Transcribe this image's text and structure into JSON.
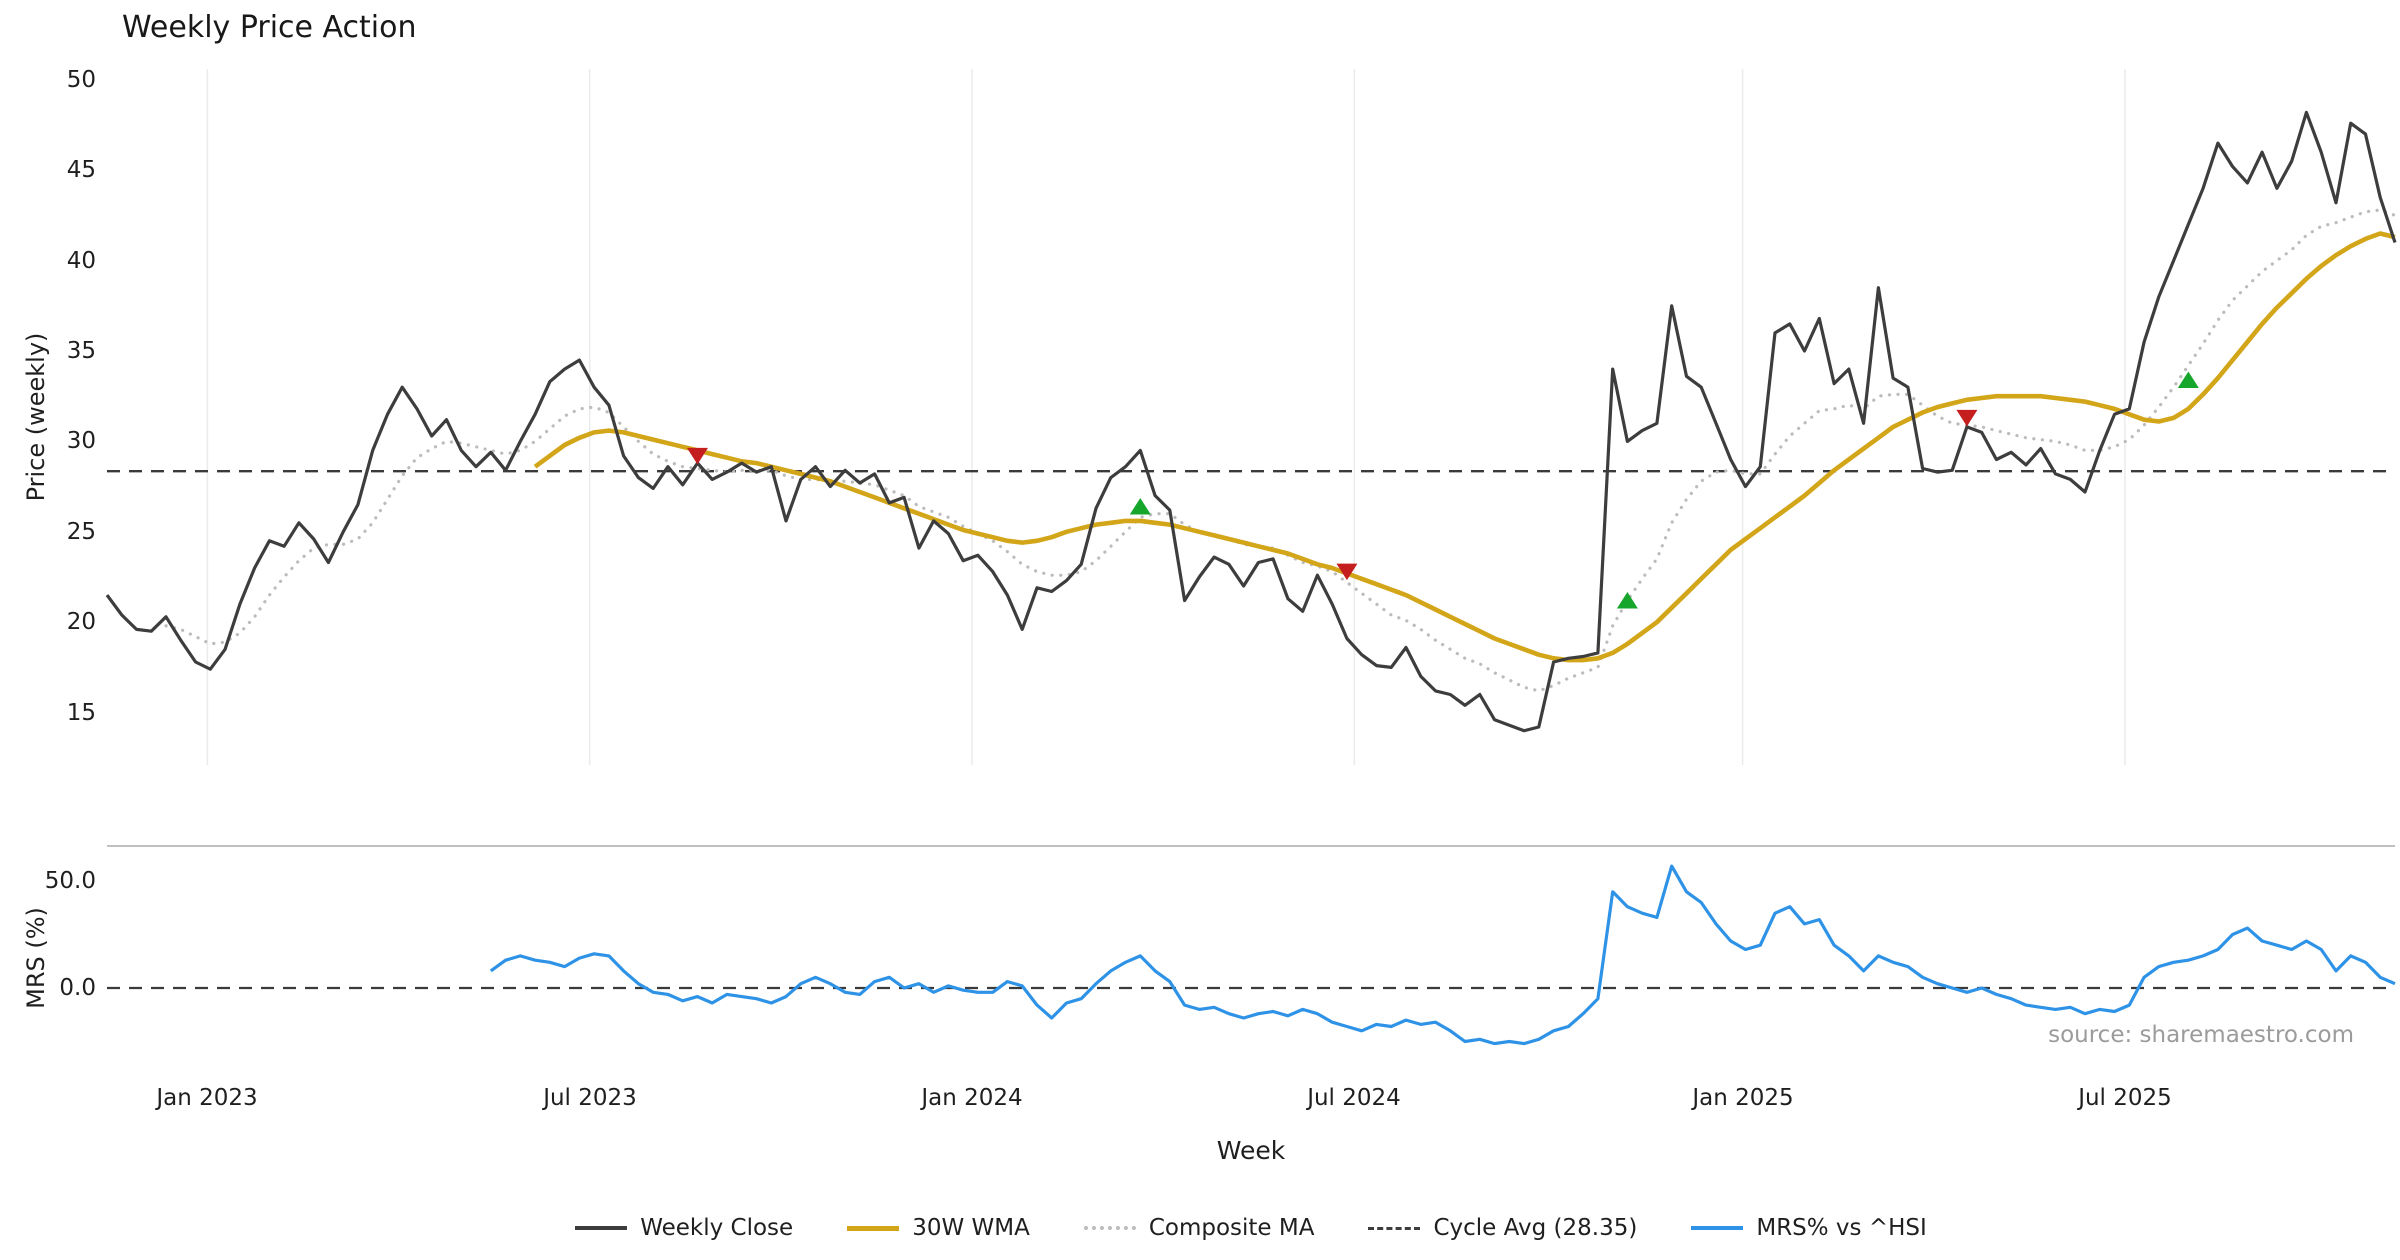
{
  "title": "Weekly Price Action",
  "xlabel": "Week",
  "source": "source: sharemaestro.com",
  "legend": {
    "items": [
      {
        "label": "Weekly Close",
        "color": "#3d3d3d",
        "style": "solid",
        "weight": 4
      },
      {
        "label": "30W WMA",
        "color": "#d3a518",
        "style": "solid",
        "weight": 5
      },
      {
        "label": "Composite MA",
        "color": "#bcbcbc",
        "style": "dotted",
        "weight": 4
      },
      {
        "label": "Cycle Avg (28.35)",
        "color": "#3d3d3d",
        "style": "dashed",
        "weight": 3
      },
      {
        "label": "MRS% vs ^HSI",
        "color": "#2e93e6",
        "style": "solid",
        "weight": 4
      }
    ]
  },
  "chart_data": {
    "type": "line",
    "title": "Weekly Price Action",
    "xlabel": "Week",
    "n_points": 156,
    "grid": true,
    "grid_color": "#ebebeb",
    "buy_color": "#17a62c",
    "sell_color": "#c41e1e",
    "x_tick_labels": [
      "Jan 2023",
      "Jul 2023",
      "Jan 2024",
      "Jul 2024",
      "Jan 2025",
      "Jul 2025"
    ],
    "x_tick_indices": [
      6.8,
      32.7,
      58.6,
      84.5,
      110.8,
      136.7
    ],
    "price_panel": {
      "ylabel": "Price (weekly)",
      "ylim": [
        12.1,
        50.6
      ],
      "cycle_avg": 28.35,
      "yticks": [
        {
          "label": "50",
          "value": 50
        },
        {
          "label": "45",
          "value": 45
        },
        {
          "label": "40",
          "value": 40
        },
        {
          "label": "35",
          "value": 35
        },
        {
          "label": "30",
          "value": 30
        },
        {
          "label": "25",
          "value": 25
        },
        {
          "label": "20",
          "value": 20
        },
        {
          "label": "15",
          "value": 15
        }
      ],
      "series": [
        {
          "name": "Weekly Close",
          "color": "#3d3d3d",
          "width": 3.2,
          "style": "solid",
          "values": [
            21.5,
            20.4,
            19.6,
            19.5,
            20.3,
            19.0,
            17.8,
            17.4,
            18.5,
            21.0,
            23.0,
            24.5,
            24.2,
            25.5,
            24.6,
            23.3,
            25.0,
            26.5,
            29.5,
            31.5,
            33.0,
            31.8,
            30.3,
            31.2,
            29.5,
            28.6,
            29.4,
            28.4,
            30.0,
            31.5,
            33.3,
            34.0,
            34.5,
            33.0,
            32.0,
            29.2,
            28.0,
            27.4,
            28.6,
            27.6,
            28.8,
            27.9,
            28.3,
            28.8,
            28.3,
            28.6,
            25.6,
            27.9,
            28.6,
            27.5,
            28.4,
            27.7,
            28.2,
            26.6,
            26.9,
            24.1,
            25.6,
            24.9,
            23.4,
            23.7,
            22.8,
            21.5,
            19.6,
            21.9,
            21.7,
            22.3,
            23.2,
            26.3,
            28.0,
            28.6,
            29.5,
            27.0,
            26.2,
            21.2,
            22.5,
            23.6,
            23.2,
            22.0,
            23.3,
            23.5,
            21.3,
            20.6,
            22.6,
            21.0,
            19.1,
            18.2,
            17.6,
            17.5,
            18.6,
            17.0,
            16.2,
            16.0,
            15.4,
            16.0,
            14.6,
            14.3,
            14.0,
            14.2,
            17.8,
            18.0,
            18.1,
            18.3,
            34.0,
            30.0,
            30.6,
            31.0,
            37.5,
            33.6,
            33.0,
            31.0,
            29.0,
            27.5,
            28.6,
            36.0,
            36.5,
            35.0,
            36.8,
            33.2,
            34.0,
            31.0,
            38.5,
            33.5,
            33.0,
            28.5,
            28.3,
            28.4,
            30.8,
            30.5,
            29.0,
            29.4,
            28.7,
            29.6,
            28.2,
            27.9,
            27.2,
            29.5,
            31.5,
            31.8,
            35.5,
            38.0,
            40.0,
            42.0,
            44.0,
            46.5,
            45.2,
            44.3,
            46.0,
            44.0,
            45.5,
            48.2,
            46.0,
            43.2,
            47.6,
            47.0,
            43.5,
            41.0
          ]
        },
        {
          "name": "30W WMA",
          "color": "#d3a518",
          "width": 4.6,
          "style": "solid",
          "values": [
            null,
            null,
            null,
            null,
            null,
            null,
            null,
            null,
            null,
            null,
            null,
            null,
            null,
            null,
            null,
            null,
            null,
            null,
            null,
            null,
            null,
            null,
            null,
            null,
            null,
            null,
            null,
            null,
            null,
            28.6,
            29.2,
            29.8,
            30.2,
            30.5,
            30.6,
            30.5,
            30.3,
            30.1,
            29.9,
            29.7,
            29.5,
            29.3,
            29.1,
            28.9,
            28.8,
            28.6,
            28.4,
            28.2,
            28.0,
            27.8,
            27.5,
            27.2,
            26.9,
            26.6,
            26.3,
            26.0,
            25.7,
            25.4,
            25.1,
            24.9,
            24.7,
            24.5,
            24.4,
            24.5,
            24.7,
            25.0,
            25.2,
            25.4,
            25.5,
            25.6,
            25.6,
            25.5,
            25.4,
            25.2,
            25.0,
            24.8,
            24.6,
            24.4,
            24.2,
            24.0,
            23.8,
            23.5,
            23.2,
            23.0,
            22.7,
            22.4,
            22.1,
            21.8,
            21.5,
            21.1,
            20.7,
            20.3,
            19.9,
            19.5,
            19.1,
            18.8,
            18.5,
            18.2,
            18.0,
            17.9,
            17.9,
            18.0,
            18.3,
            18.8,
            19.4,
            20.0,
            20.8,
            21.6,
            22.4,
            23.2,
            24.0,
            24.6,
            25.2,
            25.8,
            26.4,
            27.0,
            27.7,
            28.4,
            29.0,
            29.6,
            30.2,
            30.8,
            31.2,
            31.6,
            31.9,
            32.1,
            32.3,
            32.4,
            32.5,
            32.5,
            32.5,
            32.5,
            32.4,
            32.3,
            32.2,
            32.0,
            31.8,
            31.5,
            31.2,
            31.1,
            31.3,
            31.8,
            32.6,
            33.5,
            34.5,
            35.5,
            36.5,
            37.4,
            38.2,
            39.0,
            39.7,
            40.3,
            40.8,
            41.2,
            41.5,
            41.3
          ]
        },
        {
          "name": "Composite MA",
          "color": "#bcbcbc",
          "width": 3.2,
          "style": "dotted",
          "values": [
            null,
            null,
            null,
            null,
            19.8,
            19.6,
            19.2,
            18.8,
            18.9,
            19.4,
            20.3,
            21.5,
            22.5,
            23.4,
            24.1,
            24.3,
            24.3,
            24.6,
            25.5,
            26.8,
            28.1,
            29.1,
            29.6,
            30.0,
            29.9,
            29.7,
            29.5,
            29.3,
            29.5,
            30.0,
            30.7,
            31.4,
            31.8,
            31.9,
            31.6,
            30.8,
            30.0,
            29.3,
            28.9,
            28.6,
            28.5,
            28.4,
            28.3,
            28.4,
            28.4,
            28.4,
            28.1,
            27.9,
            27.9,
            27.8,
            27.8,
            27.7,
            27.6,
            27.3,
            27.0,
            26.4,
            26.1,
            25.8,
            25.3,
            24.9,
            24.5,
            23.9,
            23.2,
            22.8,
            22.6,
            22.6,
            22.8,
            23.4,
            24.2,
            25.0,
            25.8,
            26.0,
            26.0,
            25.4,
            25.0,
            24.8,
            24.6,
            24.3,
            24.2,
            24.1,
            23.7,
            23.3,
            23.1,
            22.8,
            22.2,
            21.6,
            21.0,
            20.4,
            20.1,
            19.6,
            19.0,
            18.5,
            18.0,
            17.7,
            17.2,
            16.8,
            16.4,
            16.2,
            16.5,
            16.9,
            17.2,
            17.5,
            19.8,
            21.2,
            22.4,
            23.5,
            25.5,
            26.8,
            27.8,
            28.3,
            28.4,
            28.2,
            28.2,
            29.3,
            30.3,
            31.0,
            31.7,
            31.8,
            32.0,
            31.8,
            32.5,
            32.6,
            32.6,
            32.0,
            31.4,
            31.0,
            30.9,
            30.8,
            30.6,
            30.4,
            30.2,
            30.1,
            30.0,
            29.8,
            29.5,
            29.5,
            29.7,
            30.1,
            30.9,
            31.9,
            33.0,
            34.2,
            35.4,
            36.7,
            37.8,
            38.6,
            39.4,
            40.0,
            40.6,
            41.4,
            41.9,
            42.1,
            42.4,
            42.7,
            42.8,
            42.5
          ]
        }
      ],
      "signals": [
        {
          "index": 40,
          "value": 29.2,
          "type": "sell"
        },
        {
          "index": 70,
          "value": 26.4,
          "type": "buy"
        },
        {
          "index": 84,
          "value": 22.8,
          "type": "sell"
        },
        {
          "index": 103,
          "value": 21.2,
          "type": "buy"
        },
        {
          "index": 126,
          "value": 31.3,
          "type": "sell"
        },
        {
          "index": 141,
          "value": 33.4,
          "type": "buy"
        }
      ]
    },
    "mrs_panel": {
      "ylabel": "MRS (%)",
      "ylim": [
        -38.8,
        66.4
      ],
      "zero_line": 0,
      "yticks": [
        {
          "label": "50.0",
          "value": 50
        },
        {
          "label": "0.0",
          "value": 0
        }
      ],
      "series": [
        {
          "name": "MRS% vs ^HSI",
          "color": "#2e93e6",
          "width": 3.2,
          "style": "solid",
          "values": [
            null,
            null,
            null,
            null,
            null,
            null,
            null,
            null,
            null,
            null,
            null,
            null,
            null,
            null,
            null,
            null,
            null,
            null,
            null,
            null,
            null,
            null,
            null,
            null,
            null,
            null,
            8,
            13,
            15,
            13,
            12,
            10,
            14,
            16,
            15,
            8,
            2,
            -2,
            -3,
            -6,
            -4,
            -7,
            -3,
            -4,
            -5,
            -7,
            -4,
            2,
            5,
            2,
            -2,
            -3,
            3,
            5,
            0,
            2,
            -2,
            1,
            -1,
            -2,
            -2,
            3,
            1,
            -8,
            -14,
            -7,
            -5,
            2,
            8,
            12,
            15,
            8,
            3,
            -8,
            -10,
            -9,
            -12,
            -14,
            -12,
            -11,
            -13,
            -10,
            -12,
            -16,
            -18,
            -20,
            -17,
            -18,
            -15,
            -17,
            -16,
            -20,
            -25,
            -24,
            -26,
            -25,
            -26,
            -24,
            -20,
            -18,
            -12,
            -5,
            45,
            38,
            35,
            33,
            57,
            45,
            40,
            30,
            22,
            18,
            20,
            35,
            38,
            30,
            32,
            20,
            15,
            8,
            15,
            12,
            10,
            5,
            2,
            0,
            -2,
            0,
            -3,
            -5,
            -8,
            -9,
            -10,
            -9,
            -12,
            -10,
            -11,
            -8,
            5,
            10,
            12,
            13,
            15,
            18,
            25,
            28,
            22,
            20,
            18,
            22,
            18,
            8,
            15,
            12,
            5,
            2
          ]
        }
      ]
    }
  }
}
